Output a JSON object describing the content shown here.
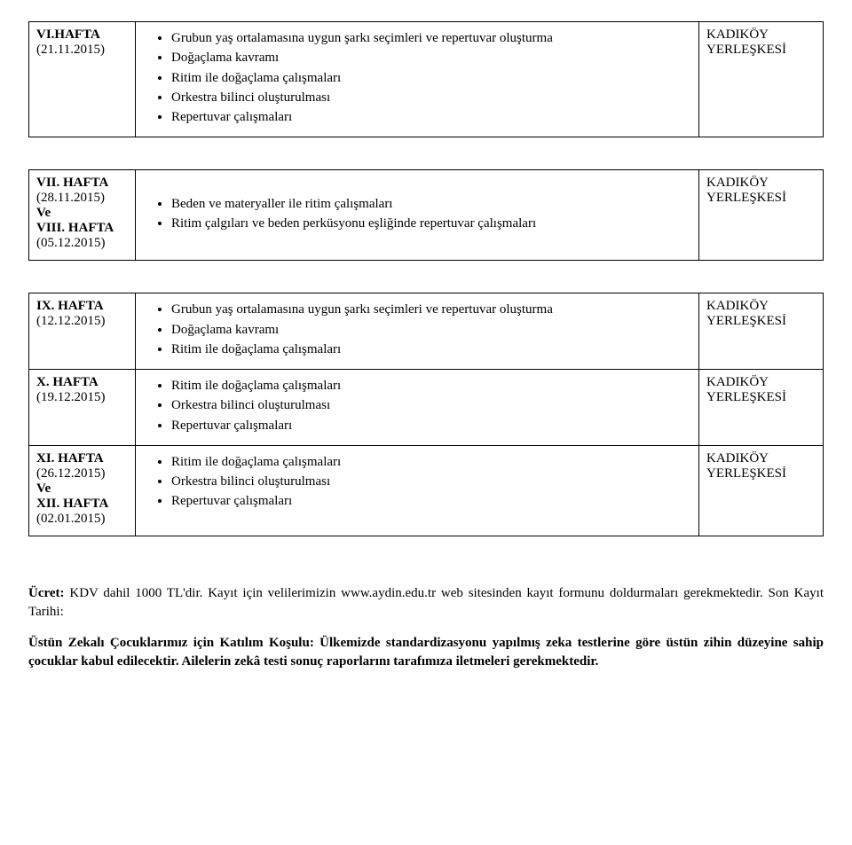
{
  "location": "KADIKÖY YERLEŞKESİ",
  "tables": [
    {
      "rows": [
        {
          "week_lines": [
            "VI.HAFTA",
            "(21.11.2015)"
          ],
          "bullets": [
            "Grubun yaş ortalamasına uygun şarkı seçimleri ve repertuvar oluşturma",
            "Doğaçlama kavramı",
            "Ritim ile doğaçlama çalışmaları",
            "Orkestra bilinci oluşturulması",
            "Repertuvar çalışmaları"
          ]
        }
      ]
    },
    {
      "rows": [
        {
          "week_lines": [
            "VII. HAFTA",
            "(28.11.2015)",
            "Ve",
            "VIII. HAFTA",
            "(05.12.2015)"
          ],
          "bullets": [
            "Beden ve materyaller ile ritim çalışmaları",
            "Ritim çalgıları ve beden perküsyonu eşliğinde repertuvar çalışmaları"
          ],
          "content_vcenter": true
        }
      ]
    },
    {
      "rows": [
        {
          "week_lines": [
            "IX. HAFTA",
            "(12.12.2015)"
          ],
          "bullets": [
            "Grubun yaş ortalamasına uygun şarkı seçimleri ve repertuvar oluşturma",
            "Doğaçlama kavramı",
            "Ritim ile doğaçlama çalışmaları"
          ]
        },
        {
          "week_lines": [
            "X. HAFTA",
            "(19.12.2015)"
          ],
          "bullets": [
            "Ritim ile doğaçlama çalışmaları",
            "Orkestra bilinci oluşturulması",
            "Repertuvar çalışmaları"
          ]
        },
        {
          "week_lines": [
            "XI. HAFTA",
            "(26.12.2015)",
            "Ve",
            "XII. HAFTA",
            "(02.01.2015)"
          ],
          "bullets": [
            "Ritim ile doğaçlama çalışmaları",
            "Orkestra bilinci oluşturulması",
            "Repertuvar çalışmaları"
          ]
        }
      ]
    }
  ],
  "footer": {
    "p1_bold": "Ücret:",
    "p1_rest": " KDV dahil 1000 TL'dir. Kayıt için velilerimizin www.aydin.edu.tr web sitesinden kayıt formunu doldurmaları gerekmektedir. Son Kayıt Tarihi:",
    "p2_bold": "Üstün Zekalı Çocuklarımız için Katılım Koşulu: Ülkemizde standardizasyonu yapılmış zeka testlerine göre üstün zihin düzeyine sahip çocuklar kabul edilecektir. Ailelerin zekâ testi sonuç raporlarını tarafımıza iletmeleri gerekmektedir."
  }
}
